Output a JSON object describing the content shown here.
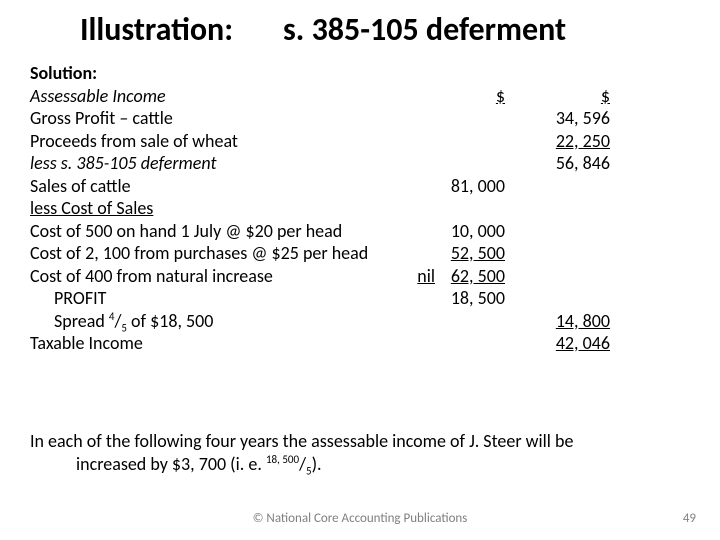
{
  "title_left": "Illustration:",
  "title_right": "s. 385-105 deferment",
  "lines": {
    "solution": "Solution:",
    "assessable": "Assessable Income",
    "gross_profit": "Gross Profit – cattle",
    "proceeds": "Proceeds from sale of wheat",
    "less_deferment": "less s. 385-105 deferment",
    "sales_cattle": "Sales of cattle",
    "less_cost": "less Cost of Sales",
    "cost500": "Cost of 500 on hand 1 July @ $20 per head",
    "cost2100": "Cost of 2, 100 from purchases @ $25 per head",
    "cost400": "Cost of 400 from natural increase",
    "nil": "nil",
    "profit": "PROFIT",
    "spread_1": "Spread ",
    "spread_sup": "4",
    "spread_sub": "5",
    "spread_2": " of $18, 500",
    "taxable": "Taxable Income"
  },
  "colheads": {
    "a": "$",
    "b": "$"
  },
  "vals": {
    "gross_profit_b": "34, 596",
    "proceeds_b": "22, 250",
    "subtotal_b": "56, 846",
    "sales_cattle_a": "81, 000",
    "cost500_a": "10, 000",
    "cost2100_a": "52, 500",
    "cost400_a": "62, 500",
    "profit_a": "18, 500",
    "spread_b": "14, 800",
    "taxable_b": "42, 046"
  },
  "note": {
    "l1": "In each of the following four years the assessable income of J. Steer will be",
    "l2a": "increased by $3, 700 (i. e. ",
    "sup": "18, 500",
    "sub": "5",
    "l2b": ")."
  },
  "footer": "© National Core Accounting Publications",
  "pagenum": "49",
  "colors": {
    "text": "#000000",
    "footer": "#7f7f7f",
    "bg": "#ffffff"
  },
  "typography": {
    "title_fontsize": 32,
    "body_fontsize": 18,
    "footer_fontsize": 13
  }
}
